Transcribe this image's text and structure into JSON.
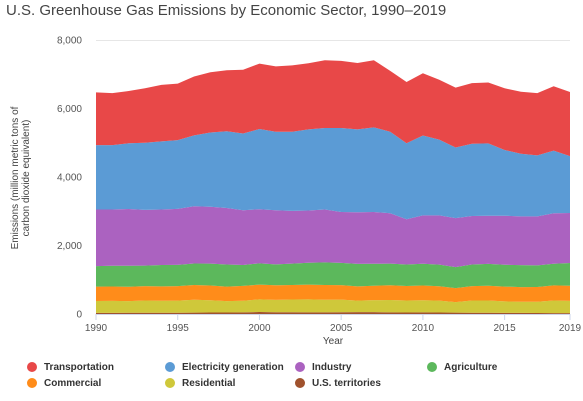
{
  "chart_data": {
    "type": "area",
    "title": "U.S. Greenhouse Gas Emissions by Economic Sector, 1990–2019",
    "xlabel": "Year",
    "ylabel_lines": [
      "Emissions (million metric tons of",
      "carbon dioxide equivalent)"
    ],
    "ylim": [
      0,
      8000
    ],
    "yticks": [
      "0",
      "2,000",
      "4,000",
      "6,000",
      "8,000"
    ],
    "ytick_values": [
      0,
      2000,
      4000,
      6000,
      8000
    ],
    "xticks": [
      "1990",
      "1995",
      "2000",
      "2005",
      "2010",
      "2015",
      "2019"
    ],
    "xtick_values": [
      1990,
      1995,
      2000,
      2005,
      2010,
      2015,
      2019
    ],
    "stacked": true,
    "grid": "horizontal",
    "legend_position": "bottom",
    "x": [
      1990,
      1991,
      1992,
      1993,
      1994,
      1995,
      1996,
      1997,
      1998,
      1999,
      2000,
      2001,
      2002,
      2003,
      2004,
      2005,
      2006,
      2007,
      2008,
      2009,
      2010,
      2011,
      2012,
      2013,
      2014,
      2015,
      2016,
      2017,
      2018,
      2019
    ],
    "series": [
      {
        "name": "U.S. territories",
        "color": "#a0522d",
        "values": [
          33,
          34,
          35,
          36,
          37,
          38,
          40,
          42,
          45,
          48,
          58,
          52,
          50,
          48,
          46,
          52,
          55,
          54,
          48,
          44,
          46,
          42,
          40,
          38,
          36,
          34,
          32,
          30,
          26,
          24
        ]
      },
      {
        "name": "Residential",
        "color": "#cfc83a",
        "values": [
          345,
          350,
          342,
          358,
          350,
          352,
          375,
          358,
          330,
          340,
          370,
          360,
          372,
          380,
          370,
          366,
          335,
          350,
          360,
          350,
          357,
          350,
          305,
          355,
          357,
          335,
          324,
          326,
          370,
          358
        ]
      },
      {
        "name": "Commercial",
        "color": "#ff8c1a",
        "values": [
          420,
          420,
          418,
          420,
          420,
          425,
          430,
          432,
          425,
          432,
          430,
          428,
          425,
          430,
          432,
          425,
          416,
          422,
          430,
          425,
          430,
          420,
          410,
          422,
          430,
          432,
          430,
          434,
          440,
          442
        ]
      },
      {
        "name": "Agriculture",
        "color": "#5cb85c",
        "values": [
          600,
          605,
          612,
          600,
          625,
          618,
          630,
          640,
          645,
          612,
          620,
          610,
          625,
          640,
          660,
          650,
          656,
          640,
          632,
          628,
          634,
          628,
          612,
          630,
          640,
          637,
          640,
          628,
          630,
          664
        ]
      },
      {
        "name": "Industry",
        "color": "#ab62c0",
        "values": [
          1652,
          1641,
          1658,
          1626,
          1618,
          1635,
          1670,
          1658,
          1650,
          1598,
          1582,
          1580,
          1538,
          1522,
          1542,
          1487,
          1508,
          1514,
          1470,
          1318,
          1413,
          1440,
          1433,
          1415,
          1407,
          1432,
          1424,
          1432,
          1474,
          1462
        ]
      },
      {
        "name": "Electricity generation",
        "color": "#5b9bd5",
        "values": [
          1880,
          1880,
          1920,
          1960,
          1990,
          2010,
          2070,
          2170,
          2240,
          2240,
          2340,
          2290,
          2310,
          2370,
          2380,
          2450,
          2420,
          2470,
          2380,
          2220,
          2330,
          2210,
          2060,
          2110,
          2110,
          1920,
          1830,
          1780,
          1830,
          1660
        ]
      },
      {
        "name": "Transportation",
        "color": "#e84848",
        "values": [
          1540,
          1520,
          1525,
          1590,
          1650,
          1650,
          1720,
          1760,
          1780,
          1860,
          1910,
          1910,
          1940,
          1930,
          1980,
          1960,
          1940,
          1960,
          1780,
          1790,
          1820,
          1750,
          1750,
          1770,
          1780,
          1800,
          1810,
          1820,
          1880,
          1870
        ]
      }
    ]
  },
  "legend": [
    {
      "label": "Transportation",
      "color": "#e84848"
    },
    {
      "label": "Electricity generation",
      "color": "#5b9bd5"
    },
    {
      "label": "Industry",
      "color": "#ab62c0"
    },
    {
      "label": "Agriculture",
      "color": "#5cb85c"
    },
    {
      "label": "Commercial",
      "color": "#ff8c1a"
    },
    {
      "label": "Residential",
      "color": "#cfc83a"
    },
    {
      "label": "U.S. territories",
      "color": "#a0522d"
    }
  ]
}
